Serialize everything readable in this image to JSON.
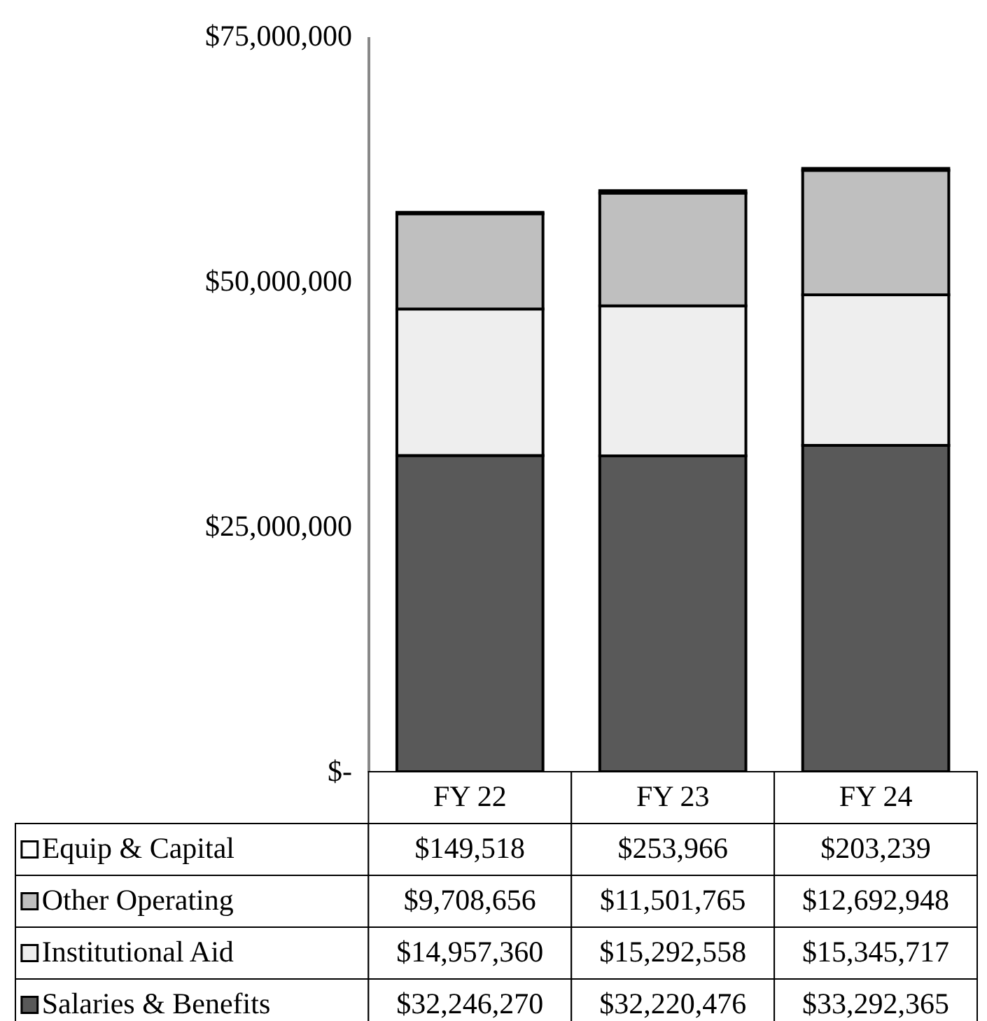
{
  "chart_data": {
    "type": "bar",
    "stacked": true,
    "legend": "bottom",
    "categories": [
      "FY 22",
      "FY 23",
      "FY 24"
    ],
    "series": [
      {
        "name": "Salaries & Benefits",
        "color": "#595959",
        "values": [
          32246270,
          32220476,
          33292365
        ],
        "value_labels": [
          "$32,246,270",
          "$32,220,476",
          "$33,292,365"
        ]
      },
      {
        "name": "Institutional Aid",
        "color": "#eeeeee",
        "values": [
          14957360,
          15292558,
          15345717
        ],
        "value_labels": [
          "$14,957,360",
          "$15,292,558",
          "$15,345,717"
        ]
      },
      {
        "name": "Other Operating",
        "color": "#bfbfbf",
        "values": [
          9708656,
          11501765,
          12692948
        ],
        "value_labels": [
          "$9,708,656",
          "$11,501,765",
          "$12,692,948"
        ]
      },
      {
        "name": "Equip & Capital",
        "color": "#ffffff",
        "values": [
          149518,
          253966,
          203239
        ],
        "value_labels": [
          "$149,518",
          "$253,966",
          "$203,239"
        ]
      }
    ],
    "ylim": [
      0,
      75000000
    ],
    "yticks": [
      {
        "value": 0,
        "label": "$-"
      },
      {
        "value": 25000000,
        "label": "$25,000,000"
      },
      {
        "value": 50000000,
        "label": "$50,000,000"
      },
      {
        "value": 75000000,
        "label": "$75,000,000"
      }
    ]
  }
}
